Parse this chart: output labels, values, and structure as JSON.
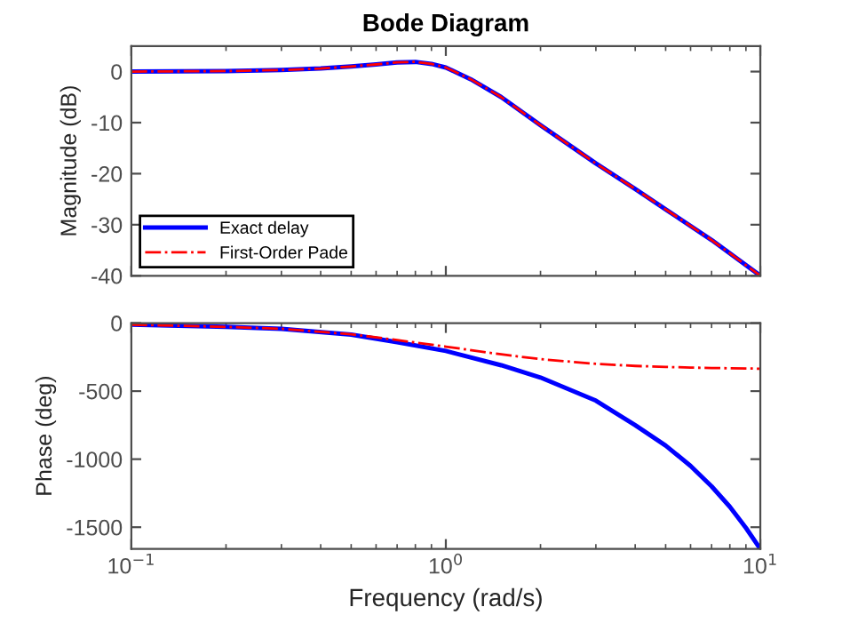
{
  "chart_data": [
    {
      "type": "line",
      "title": "Bode Diagram",
      "ylabel": "Magnitude (dB)",
      "log": "x",
      "xlim": [
        0.1,
        10
      ],
      "ylim": [
        -40,
        5
      ],
      "yticks": [
        -40,
        -30,
        -20,
        -10,
        0
      ],
      "xticks": [
        {
          "value": 0.1,
          "label": null
        },
        {
          "value": 1,
          "label": null
        },
        {
          "value": 10,
          "label": null
        }
      ],
      "tick_labels": "y",
      "grid": false,
      "legend": "bottom left",
      "marker": "none",
      "x": [
        0.1,
        0.2,
        0.3,
        0.4,
        0.5,
        0.6,
        0.7,
        0.8,
        0.9,
        1,
        1.2,
        1.5,
        2,
        3,
        4,
        5,
        7,
        10
      ],
      "series": [
        {
          "name": "Exact delay",
          "color": "#0000ff",
          "line_style": "solid",
          "values": [
            0,
            0.1,
            0.3,
            0.6,
            1.0,
            1.4,
            1.8,
            1.9,
            1.5,
            0.8,
            -1.5,
            -5,
            -10.5,
            -18,
            -23,
            -27,
            -33,
            -40
          ]
        },
        {
          "name": "First-Order Pade",
          "color": "#ff0000",
          "line_style": "dashdot",
          "values": [
            0,
            0.1,
            0.3,
            0.6,
            1.0,
            1.4,
            1.8,
            1.9,
            1.5,
            0.8,
            -1.5,
            -5,
            -10.5,
            -18,
            -23,
            -27,
            -33,
            -40
          ]
        }
      ]
    },
    {
      "type": "line",
      "xlabel": "Frequency (rad/s)",
      "ylabel": "Phase (deg)",
      "log": "x",
      "xlim": [
        0.1,
        10
      ],
      "ylim": [
        -1660,
        0
      ],
      "yticks": [
        -1500,
        -1000,
        -500,
        0
      ],
      "xticks": [
        {
          "value": 0.1,
          "label": "10$^{−1}$"
        },
        {
          "value": 1,
          "label": "10$^{0}$"
        },
        {
          "value": 10,
          "label": "10$^{1}$"
        }
      ],
      "grid": false,
      "legend": false,
      "marker": "none",
      "x": [
        0.1,
        0.2,
        0.3,
        0.5,
        0.7,
        1,
        1.5,
        2,
        3,
        4,
        5,
        6,
        7,
        8,
        9,
        10
      ],
      "series": [
        {
          "color": "#0000ff",
          "line_style": "solid",
          "values": [
            -12,
            -28,
            -42,
            -85,
            -140,
            -205,
            -310,
            -400,
            -570,
            -750,
            -900,
            -1050,
            -1200,
            -1350,
            -1505,
            -1660
          ]
        },
        {
          "color": "#ff0000",
          "line_style": "dashdot",
          "values": [
            -12,
            -28,
            -42,
            -82,
            -125,
            -173,
            -230,
            -265,
            -300,
            -315,
            -322,
            -327,
            -330,
            -332,
            -334,
            -335
          ]
        }
      ]
    }
  ]
}
